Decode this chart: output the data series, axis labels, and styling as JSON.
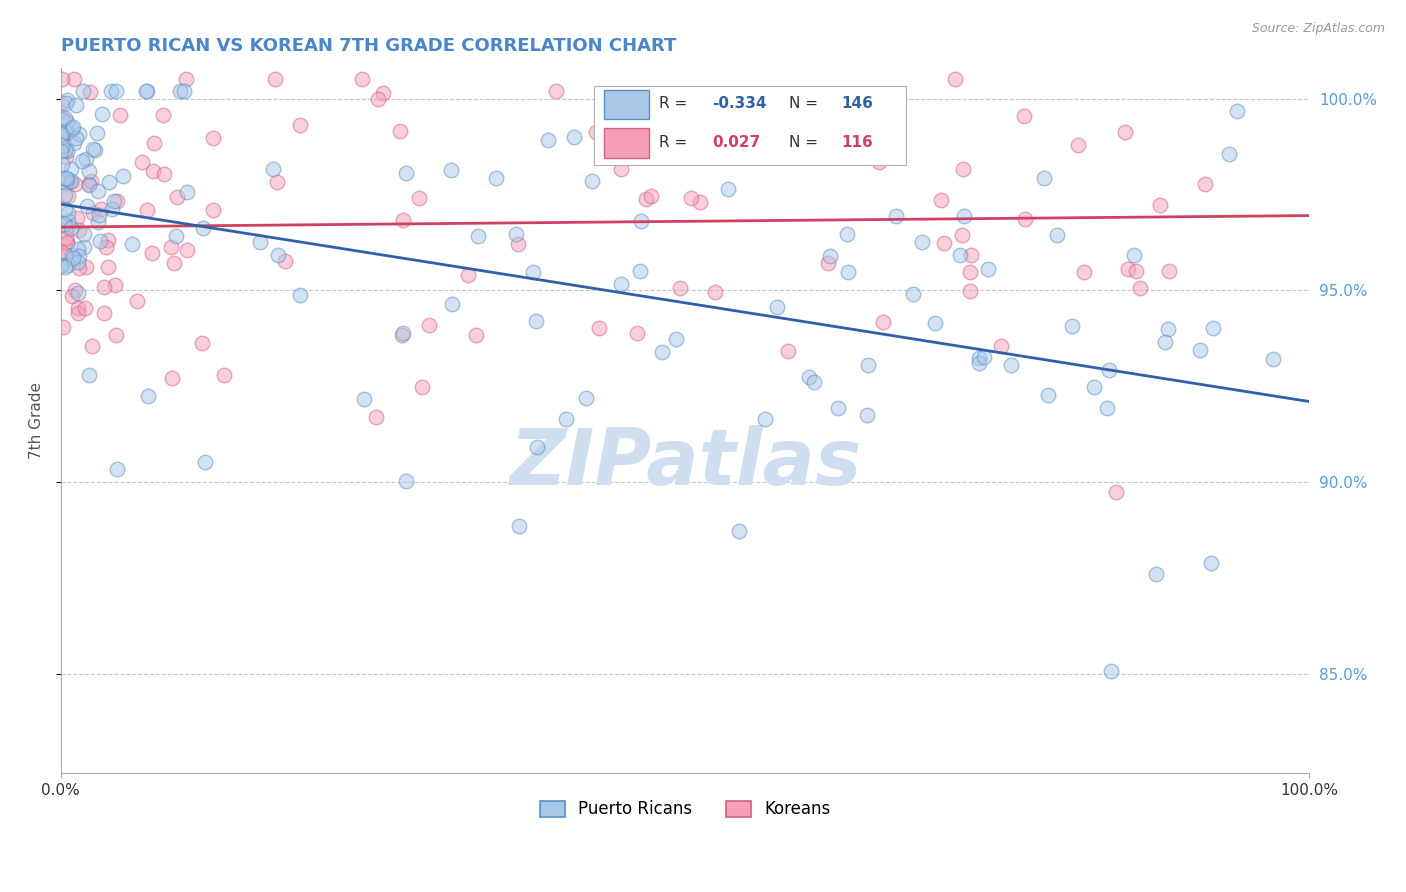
{
  "title": "PUERTO RICAN VS KOREAN 7TH GRADE CORRELATION CHART",
  "source_text": "Source: ZipAtlas.com",
  "ylabel": "7th Grade",
  "legend_labels": [
    "Puerto Ricans",
    "Koreans"
  ],
  "blue_R": -0.334,
  "blue_N": 146,
  "pink_R": 0.027,
  "pink_N": 116,
  "blue_color": "#a8c8e8",
  "pink_color": "#f4a0b8",
  "blue_edge_color": "#5b8fc4",
  "pink_edge_color": "#d46080",
  "blue_line_color": "#3060a8",
  "pink_line_color": "#d04060",
  "title_color": "#4a86c8",
  "right_tick_color": "#5b9bd5",
  "watermark_color": "#d0dff0",
  "xmin": 0.0,
  "xmax": 1.0,
  "ymin": 0.824,
  "ymax": 1.008,
  "yticks": [
    0.85,
    0.9,
    0.95,
    1.0
  ],
  "ytick_labels": [
    "85.0%",
    "90.0%",
    "95.0%",
    "100.0%"
  ],
  "xticks": [
    0.0,
    1.0
  ],
  "xtick_labels": [
    "0.0%",
    "100.0%"
  ],
  "grid_color": "#c8c8c8",
  "blue_trend_x0": 0.0,
  "blue_trend_y0": 0.9725,
  "blue_trend_x1": 1.0,
  "blue_trend_y1": 0.921,
  "pink_trend_x0": 0.0,
  "pink_trend_y0": 0.9665,
  "pink_trend_x1": 1.0,
  "pink_trend_y1": 0.9695,
  "dot_size": 110,
  "dot_alpha": 0.5,
  "figsize": [
    14.06,
    8.92
  ],
  "dpi": 100
}
